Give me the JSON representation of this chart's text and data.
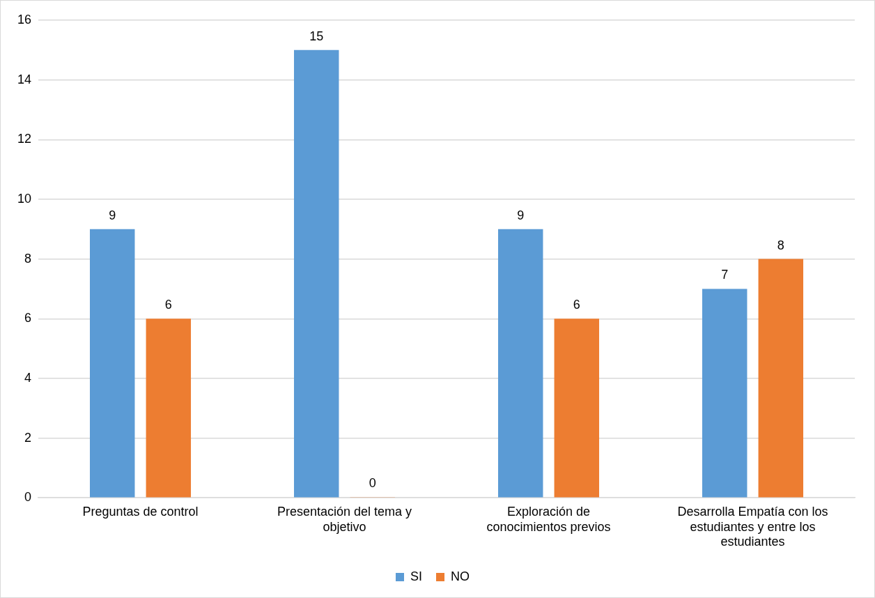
{
  "chart_data": {
    "type": "bar",
    "categories": [
      "Preguntas de control",
      "Presentación del tema y objetivo",
      "Exploración de conocimientos previos",
      "Desarrolla Empatía con los estudiantes y entre los estudiantes"
    ],
    "series": [
      {
        "name": "SI",
        "color": "#5b9bd5",
        "values": [
          9,
          15,
          9,
          7
        ]
      },
      {
        "name": "NO",
        "color": "#ed7d31",
        "values": [
          6,
          0,
          6,
          8
        ]
      }
    ],
    "ylim": [
      0,
      16
    ],
    "yticks": [
      0,
      2,
      4,
      6,
      8,
      10,
      12,
      14,
      16
    ],
    "grid": "y",
    "legend": "bottom",
    "data_labels": true
  }
}
